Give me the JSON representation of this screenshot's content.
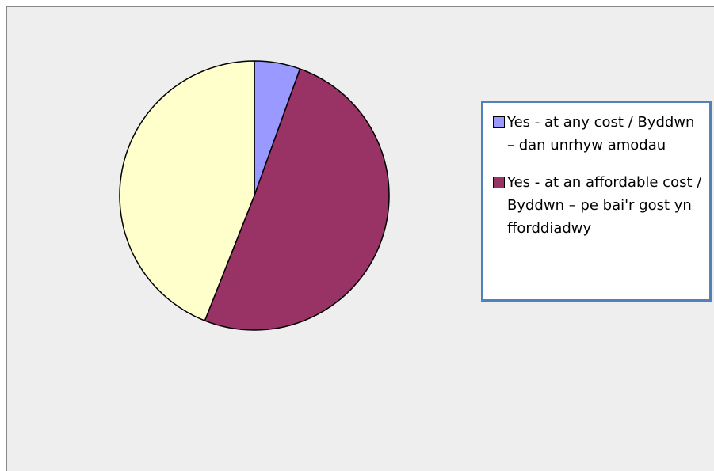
{
  "chart_data": {
    "type": "pie",
    "categories": [
      "Yes - at any cost / Byddwn – dan unrhyw amodau",
      "Yes - at an affordable cost / Byddwn – pe bai'r gost yn fforddiadwy",
      null
    ],
    "values": [
      5.5,
      50.5,
      44
    ],
    "colors": [
      "#9999ff",
      "#993366",
      "#ffffcc"
    ]
  }
}
